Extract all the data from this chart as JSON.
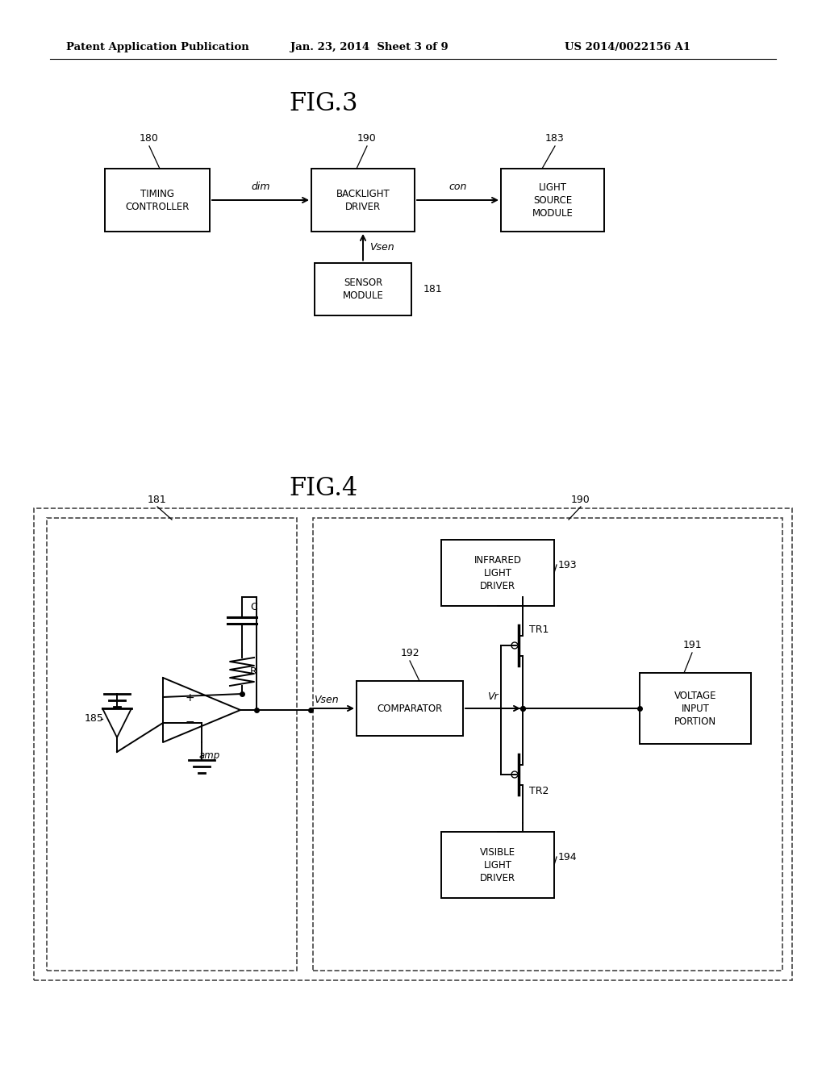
{
  "bg_color": "#ffffff",
  "header_left": "Patent Application Publication",
  "header_center": "Jan. 23, 2014  Sheet 3 of 9",
  "header_right": "US 2014/0022156 A1",
  "fig3_title": "FIG.3",
  "fig4_title": "FIG.4",
  "line_color": "#000000"
}
